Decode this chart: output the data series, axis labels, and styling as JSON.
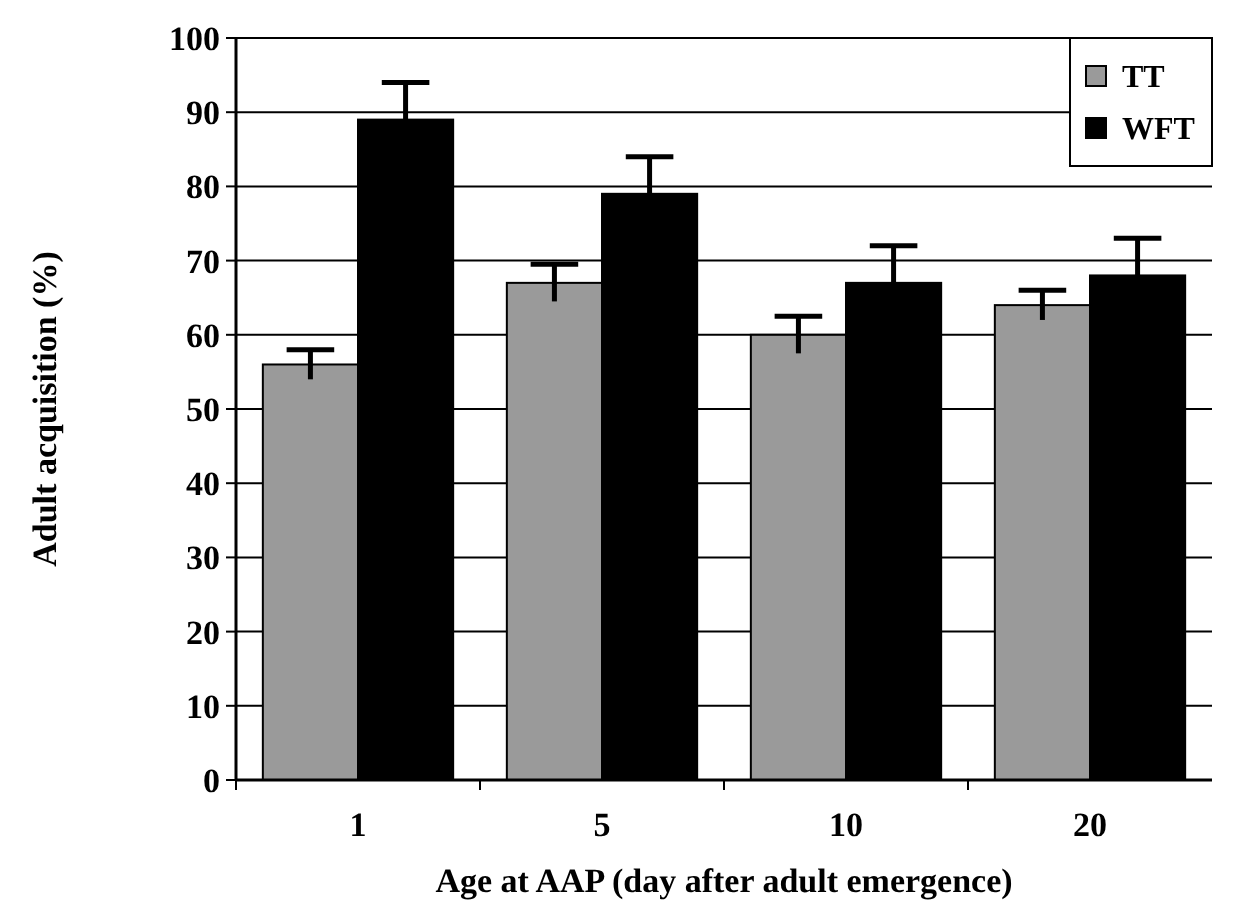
{
  "chart_data": {
    "type": "bar",
    "xlabel": "Age at AAP (day after adult emergence)",
    "ylabel": "Adult acquisition  (%)",
    "categories": [
      "1",
      "5",
      "10",
      "20"
    ],
    "series": [
      {
        "name": "TT",
        "color": "#9a9a9a",
        "values": [
          56,
          67,
          60,
          64
        ],
        "errors": [
          2,
          2.5,
          2.5,
          2
        ]
      },
      {
        "name": "WFT",
        "color": "#000000",
        "values": [
          89,
          79,
          67,
          68
        ],
        "errors": [
          5,
          5,
          5,
          5
        ]
      }
    ],
    "ylim": [
      0,
      100
    ],
    "yticks": [
      0,
      10,
      20,
      30,
      40,
      50,
      60,
      70,
      80,
      90,
      100
    ],
    "grid": "y",
    "legend": "top right"
  }
}
